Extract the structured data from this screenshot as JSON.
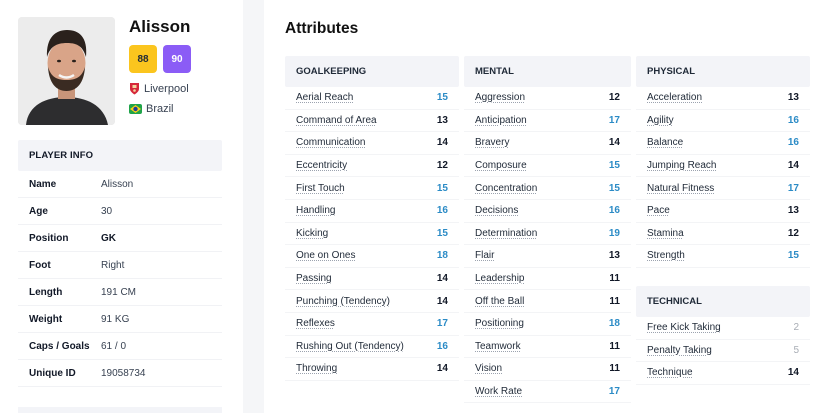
{
  "player": {
    "name": "Alisson",
    "current_ability": "88",
    "potential_ability": "90",
    "club": "Liverpool",
    "nation": "Brazil",
    "colors": {
      "ca_badge": "#fbc51e",
      "pa_badge": "#8b5cf6"
    }
  },
  "player_info": {
    "title": "PLAYER INFO",
    "rows": [
      {
        "label": "Name",
        "value": "Alisson"
      },
      {
        "label": "Age",
        "value": "30"
      },
      {
        "label": "Position",
        "value": "GK"
      },
      {
        "label": "Foot",
        "value": "Right"
      },
      {
        "label": "Length",
        "value": "191 CM"
      },
      {
        "label": "Weight",
        "value": "91 KG"
      },
      {
        "label": "Caps / Goals",
        "value": "61 / 0"
      },
      {
        "label": "Unique ID",
        "value": "19058734"
      }
    ]
  },
  "attributes": {
    "title": "Attributes",
    "value_colors": {
      "high": "#2b8bc6",
      "mid": "#111827",
      "low": "#a8adb5"
    },
    "goalkeeping": {
      "title": "GOALKEEPING",
      "items": [
        {
          "name": "Aerial Reach",
          "value": "15",
          "tier": "high"
        },
        {
          "name": "Command of Area",
          "value": "13",
          "tier": "mid"
        },
        {
          "name": "Communication",
          "value": "14",
          "tier": "mid"
        },
        {
          "name": "Eccentricity",
          "value": "12",
          "tier": "mid"
        },
        {
          "name": "First Touch",
          "value": "15",
          "tier": "high"
        },
        {
          "name": "Handling",
          "value": "16",
          "tier": "high"
        },
        {
          "name": "Kicking",
          "value": "15",
          "tier": "high"
        },
        {
          "name": "One on Ones",
          "value": "18",
          "tier": "high"
        },
        {
          "name": "Passing",
          "value": "14",
          "tier": "mid"
        },
        {
          "name": "Punching (Tendency)",
          "value": "14",
          "tier": "mid"
        },
        {
          "name": "Reflexes",
          "value": "17",
          "tier": "high"
        },
        {
          "name": "Rushing Out (Tendency)",
          "value": "16",
          "tier": "high"
        },
        {
          "name": "Throwing",
          "value": "14",
          "tier": "mid"
        }
      ]
    },
    "mental": {
      "title": "MENTAL",
      "items": [
        {
          "name": "Aggression",
          "value": "12",
          "tier": "mid"
        },
        {
          "name": "Anticipation",
          "value": "17",
          "tier": "high"
        },
        {
          "name": "Bravery",
          "value": "14",
          "tier": "mid"
        },
        {
          "name": "Composure",
          "value": "15",
          "tier": "high"
        },
        {
          "name": "Concentration",
          "value": "15",
          "tier": "high"
        },
        {
          "name": "Decisions",
          "value": "16",
          "tier": "high"
        },
        {
          "name": "Determination",
          "value": "19",
          "tier": "high"
        },
        {
          "name": "Flair",
          "value": "13",
          "tier": "mid"
        },
        {
          "name": "Leadership",
          "value": "11",
          "tier": "mid"
        },
        {
          "name": "Off the Ball",
          "value": "11",
          "tier": "mid"
        },
        {
          "name": "Positioning",
          "value": "18",
          "tier": "high"
        },
        {
          "name": "Teamwork",
          "value": "11",
          "tier": "mid"
        },
        {
          "name": "Vision",
          "value": "11",
          "tier": "mid"
        },
        {
          "name": "Work Rate",
          "value": "17",
          "tier": "high"
        }
      ]
    },
    "physical": {
      "title": "PHYSICAL",
      "items": [
        {
          "name": "Acceleration",
          "value": "13",
          "tier": "mid"
        },
        {
          "name": "Agility",
          "value": "16",
          "tier": "high"
        },
        {
          "name": "Balance",
          "value": "16",
          "tier": "high"
        },
        {
          "name": "Jumping Reach",
          "value": "14",
          "tier": "mid"
        },
        {
          "name": "Natural Fitness",
          "value": "17",
          "tier": "high"
        },
        {
          "name": "Pace",
          "value": "13",
          "tier": "mid"
        },
        {
          "name": "Stamina",
          "value": "12",
          "tier": "mid"
        },
        {
          "name": "Strength",
          "value": "15",
          "tier": "high"
        }
      ]
    },
    "technical": {
      "title": "TECHNICAL",
      "items": [
        {
          "name": "Free Kick Taking",
          "value": "2",
          "tier": "low"
        },
        {
          "name": "Penalty Taking",
          "value": "5",
          "tier": "low"
        },
        {
          "name": "Technique",
          "value": "14",
          "tier": "mid"
        }
      ]
    }
  }
}
